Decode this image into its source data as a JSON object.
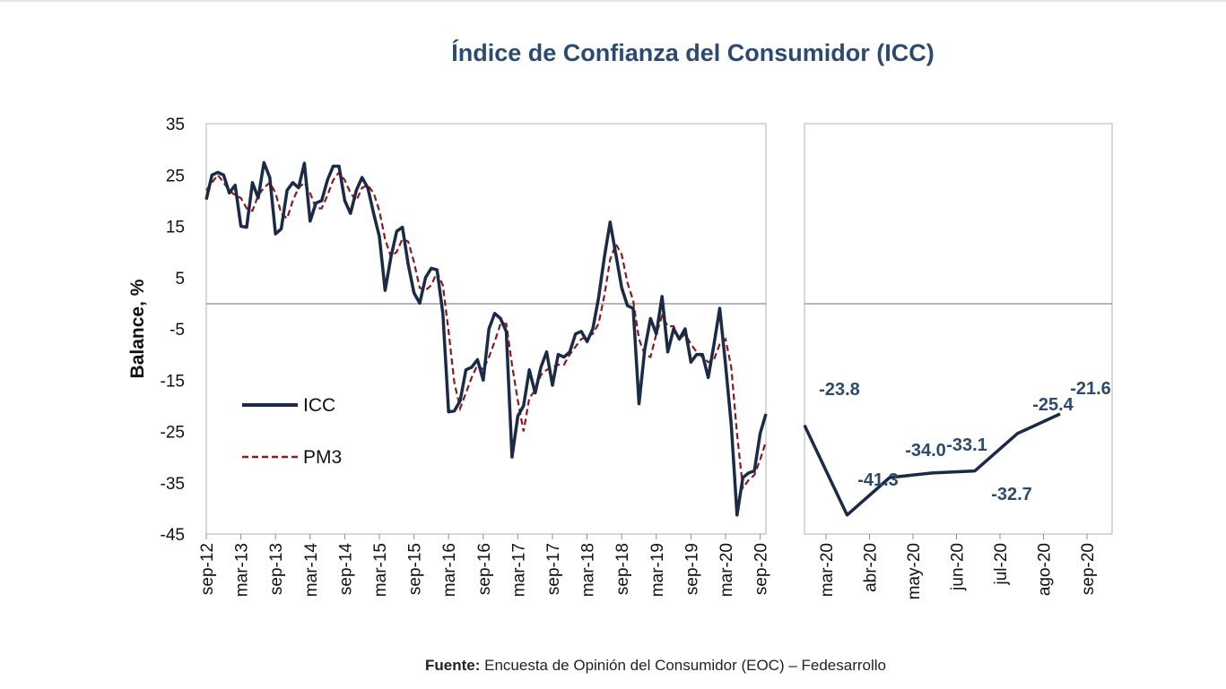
{
  "chart_data": [
    {
      "type": "line",
      "title": "Índice de Confianza del Consumidor (ICC)",
      "ylabel": "Balance, %",
      "ylim": [
        -45,
        35
      ],
      "yticks": [
        35,
        25,
        15,
        5,
        -5,
        -15,
        -25,
        -35,
        -45
      ],
      "x_tick_labels": [
        "sep-12",
        "mar-13",
        "sep-13",
        "mar-14",
        "sep-14",
        "mar-15",
        "sep-15",
        "mar-16",
        "sep-16",
        "mar-17",
        "sep-17",
        "mar-18",
        "sep-18",
        "mar-19",
        "sep-19",
        "mar-20",
        "sep-20"
      ],
      "x_start": "sep-12",
      "x_end": "sep-20",
      "frequency": "monthly",
      "gridlines": false,
      "legend_position": "bottom-left",
      "series": [
        {
          "name": "ICC",
          "style": "solid",
          "color": "#1b2a47",
          "values": [
            20.2,
            25.0,
            25.5,
            25.0,
            21.5,
            23.0,
            15.0,
            14.8,
            23.5,
            20.5,
            27.4,
            24.5,
            13.5,
            14.5,
            22.0,
            23.5,
            22.5,
            27.3,
            16.0,
            19.5,
            20.0,
            24.0,
            26.7,
            26.7,
            20.0,
            17.5,
            22.0,
            24.5,
            22.5,
            17.5,
            13.0,
            2.5,
            9.0,
            14.0,
            14.8,
            7.5,
            2.0,
            0.0,
            5.0,
            6.8,
            6.5,
            -2.0,
            -21.2,
            -21.0,
            -19.0,
            -13.0,
            -12.5,
            -11.0,
            -15.0,
            -5.0,
            -2.0,
            -3.0,
            -5.5,
            -30.0,
            -22.0,
            -20.0,
            -13.0,
            -17.5,
            -12.5,
            -9.5,
            -16.0,
            -10.0,
            -10.5,
            -9.5,
            -6.0,
            -5.5,
            -7.5,
            -5.0,
            1.0,
            9.0,
            15.8,
            9.5,
            3.0,
            -0.5,
            -1.0,
            -19.6,
            -9.0,
            -3.0,
            -6.0,
            1.3,
            -9.5,
            -5.0,
            -7.0,
            -5.0,
            -11.5,
            -10.0,
            -10.0,
            -14.5,
            -8.0,
            -1.0,
            -12.0,
            -23.8,
            -41.3,
            -34.0,
            -33.1,
            -32.7,
            -25.4,
            -21.6
          ]
        },
        {
          "name": "PM3",
          "style": "dashed",
          "color": "#8b1a1a",
          "values": [
            22.0,
            23.5,
            25.0,
            23.5,
            22.0,
            21.0,
            20.5,
            18.5,
            18.0,
            21.0,
            22.5,
            23.5,
            21.5,
            17.5,
            16.5,
            20.0,
            22.5,
            23.5,
            21.5,
            18.5,
            18.5,
            21.0,
            24.0,
            25.5,
            24.0,
            21.5,
            20.0,
            22.5,
            23.0,
            21.5,
            18.0,
            12.5,
            9.0,
            10.0,
            12.5,
            12.0,
            8.0,
            3.0,
            2.5,
            3.5,
            6.0,
            3.5,
            -5.5,
            -15.5,
            -20.5,
            -17.5,
            -14.5,
            -12.0,
            -13.0,
            -10.5,
            -7.5,
            -4.0,
            -4.0,
            -12.0,
            -19.0,
            -25.0,
            -18.5,
            -17.0,
            -14.0,
            -13.0,
            -12.5,
            -12.0,
            -12.0,
            -10.0,
            -8.5,
            -7.0,
            -6.5,
            -6.0,
            -4.0,
            1.5,
            8.5,
            11.5,
            9.5,
            4.0,
            0.5,
            -7.0,
            -10.0,
            -10.5,
            -6.0,
            -2.5,
            -4.5,
            -4.5,
            -7.0,
            -6.0,
            -8.0,
            -9.5,
            -10.5,
            -11.5,
            -11.0,
            -8.0,
            -7.0,
            -12.5,
            -25.5,
            -36.0,
            -34.5,
            -33.5,
            -30.5,
            -27.0
          ]
        }
      ]
    },
    {
      "type": "line",
      "title": "",
      "ylim": [
        -45,
        35
      ],
      "gridlines": false,
      "categories": [
        "mar-20",
        "abr-20",
        "may-20",
        "jun-20",
        "jul-20",
        "ago-20",
        "sep-20"
      ],
      "series": [
        {
          "name": "ICC",
          "style": "solid",
          "color": "#1b2a47",
          "values": [
            -23.8,
            -41.3,
            -34.0,
            -33.1,
            -32.7,
            -25.4,
            -21.6
          ]
        }
      ],
      "data_labels": [
        "-23.8",
        "-41.3",
        "-34.0",
        "-33.1",
        "-32.7",
        "-25.4",
        "-21.6"
      ]
    }
  ],
  "source": {
    "label": "Fuente:",
    "text": " Encuesta de Opinión del Consumidor (EOC) – Fedesarrollo"
  }
}
